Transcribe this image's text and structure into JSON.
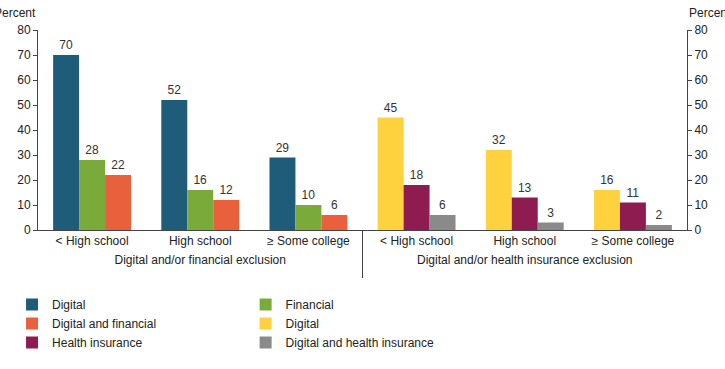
{
  "chart_data": [
    {
      "type": "bar",
      "xlabel": "Digital and/or financial exclusion",
      "ylabel": "Percent",
      "categories": [
        "< High school",
        "High school",
        "≥ Some college"
      ],
      "series": [
        {
          "name": "Digital",
          "color": "#1f5c7a",
          "values": [
            70,
            52,
            29
          ]
        },
        {
          "name": "Financial",
          "color": "#7aab3a",
          "values": [
            28,
            16,
            10
          ]
        },
        {
          "name": "Digital and financial",
          "color": "#e8603c",
          "values": [
            22,
            12,
            6
          ]
        }
      ],
      "ylim": [
        0,
        80
      ],
      "yticks": [
        0,
        10,
        20,
        30,
        40,
        50,
        60,
        70,
        80
      ],
      "data_labels": true,
      "legend": "bottom"
    },
    {
      "type": "bar",
      "xlabel": "Digital and/or health insurance exclusion",
      "ylabel": "Percent",
      "categories": [
        "< High school",
        "High school",
        "≥ Some college"
      ],
      "series": [
        {
          "name": "Digital",
          "color": "#fdd23e",
          "values": [
            45,
            32,
            16
          ]
        },
        {
          "name": "Health insurance",
          "color": "#8e1c50",
          "values": [
            18,
            13,
            11
          ]
        },
        {
          "name": "Digital and health insurance",
          "color": "#8a8a8a",
          "values": [
            6,
            3,
            2
          ]
        }
      ],
      "ylim": [
        0,
        80
      ],
      "yticks": [
        0,
        10,
        20,
        30,
        40,
        50,
        60,
        70,
        80
      ],
      "data_labels": true,
      "legend": "bottom"
    }
  ]
}
